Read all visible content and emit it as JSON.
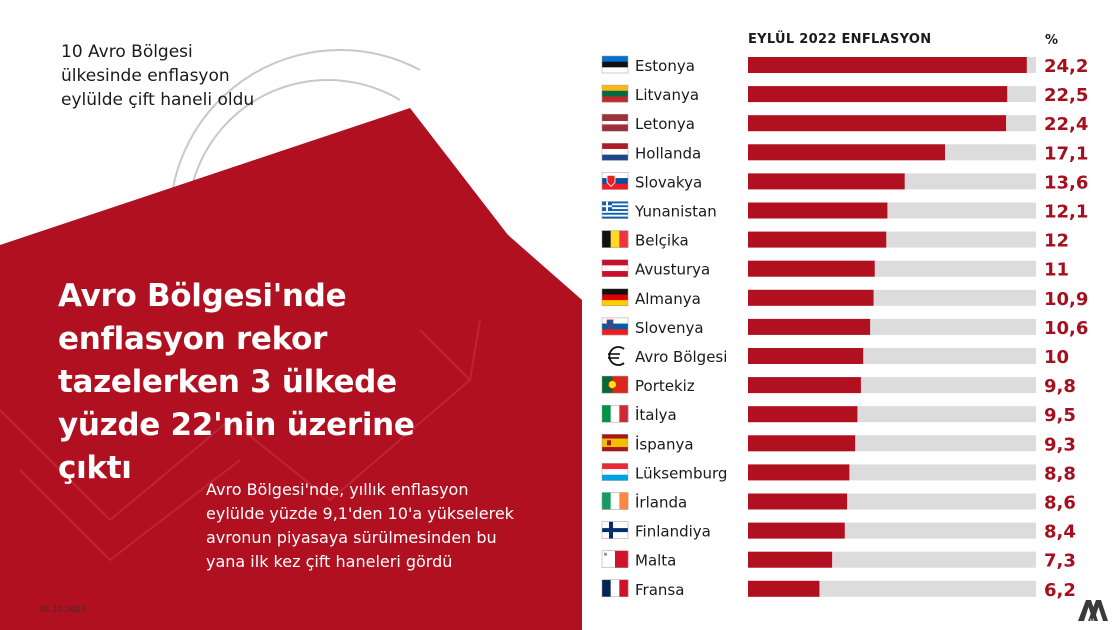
{
  "subtitle": "10 Avro Bölgesi ülkesinde enflasyon eylülde çift haneli oldu",
  "headline": "Avro Bölgesi'nde enflasyon rekor tazelerken 3 ülkede yüzde 22'nin üzerine çıktı",
  "body_text": "Avro Bölgesi'nde, yıllık enflasyon eylülde yüzde 9,1'den 10'a yükselerek avronun piyasaya sürülmesinden bu yana ilk kez çift haneleri gördü",
  "date": "01.10.2022",
  "logo_text": "AA",
  "colors": {
    "accent": "#b01020",
    "track": "#dcdcdc",
    "value_text": "#a50f1e"
  },
  "chart_data": {
    "type": "bar",
    "orientation": "horizontal",
    "title": "EYLÜL 2022 ENFLASYON",
    "unit_label": "%",
    "xlim": [
      0,
      25
    ],
    "categories": [
      "Estonya",
      "Litvanya",
      "Letonya",
      "Hollanda",
      "Slovakya",
      "Yunanistan",
      "Belçika",
      "Avusturya",
      "Almanya",
      "Slovenya",
      "Avro Bölgesi",
      "Portekiz",
      "İtalya",
      "İspanya",
      "Lüksemburg",
      "İrlanda",
      "Finlandiya",
      "Malta",
      "Fransa"
    ],
    "values": [
      24.2,
      22.5,
      22.4,
      17.1,
      13.6,
      12.1,
      12,
      11,
      10.9,
      10.6,
      10,
      9.8,
      9.5,
      9.3,
      8.8,
      8.6,
      8.4,
      7.3,
      6.2
    ],
    "value_labels": [
      "24,2",
      "22,5",
      "22,4",
      "17,1",
      "13,6",
      "12,1",
      "12",
      "11",
      "10,9",
      "10,6",
      "10",
      "9,8",
      "9,5",
      "9,3",
      "8,8",
      "8,6",
      "8,4",
      "7,3",
      "6,2"
    ],
    "flags": [
      "estonia-flag",
      "lithuania-flag",
      "latvia-flag",
      "netherlands-flag",
      "slovakia-flag",
      "greece-flag",
      "belgium-flag",
      "austria-flag",
      "germany-flag",
      "slovenia-flag",
      "euro-icon",
      "portugal-flag",
      "italy-flag",
      "spain-flag",
      "luxembourg-flag",
      "ireland-flag",
      "finland-flag",
      "malta-flag",
      "france-flag"
    ]
  }
}
